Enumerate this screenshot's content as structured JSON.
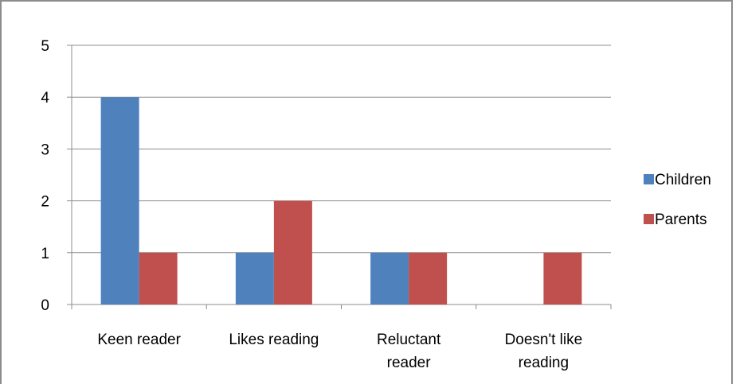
{
  "chart_data": {
    "type": "bar",
    "title": "",
    "xlabel": "",
    "ylabel": "",
    "categories": [
      [
        "Keen reader"
      ],
      [
        "Likes reading"
      ],
      [
        "Reluctant",
        "reader"
      ],
      [
        "Doesn't like",
        "reading"
      ]
    ],
    "series": [
      {
        "name": "Children",
        "color": "#4F81BD",
        "values": [
          4,
          1,
          1,
          0
        ]
      },
      {
        "name": "Parents",
        "color": "#C0504D",
        "values": [
          1,
          2,
          1,
          1
        ]
      }
    ],
    "ylim": [
      0,
      5
    ],
    "yticks": [
      "0",
      "1",
      "2",
      "3",
      "4",
      "5"
    ],
    "grid": true,
    "legend": "right"
  }
}
